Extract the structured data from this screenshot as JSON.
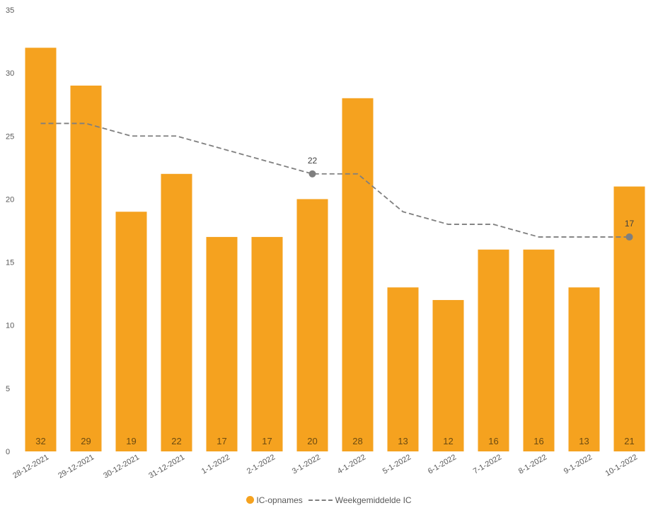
{
  "chart_data": {
    "type": "bar",
    "categories": [
      "28-12-2021",
      "29-12-2021",
      "30-12-2021",
      "31-12-2021",
      "1-1-2022",
      "2-1-2022",
      "3-1-2022",
      "4-1-2022",
      "5-1-2022",
      "6-1-2022",
      "7-1-2022",
      "8-1-2022",
      "9-1-2022",
      "10-1-2022"
    ],
    "series": [
      {
        "name": "IC-opnames",
        "type": "bar",
        "color": "#F5A21F",
        "values": [
          32,
          29,
          19,
          22,
          17,
          17,
          20,
          28,
          13,
          12,
          16,
          16,
          13,
          21
        ],
        "data_labels": [
          "32",
          "29",
          "19",
          "22",
          "17",
          "17",
          "20",
          "28",
          "13",
          "12",
          "16",
          "16",
          "13",
          "21"
        ]
      },
      {
        "name": "Weekgemiddelde IC",
        "type": "line",
        "style": "dashed",
        "color": "#7F7F7F",
        "values": [
          26,
          26,
          25,
          25,
          24,
          23,
          22,
          22,
          19,
          18,
          18,
          17,
          17,
          17
        ],
        "marked_labels": [
          {
            "index": 6,
            "label": "22"
          },
          {
            "index": 13,
            "label": "17"
          }
        ]
      }
    ],
    "yticks": [
      "0",
      "5",
      "10",
      "15",
      "20",
      "25",
      "30",
      "35"
    ],
    "ylim": [
      0,
      35
    ],
    "grid": false,
    "legend": "bottom-center"
  }
}
